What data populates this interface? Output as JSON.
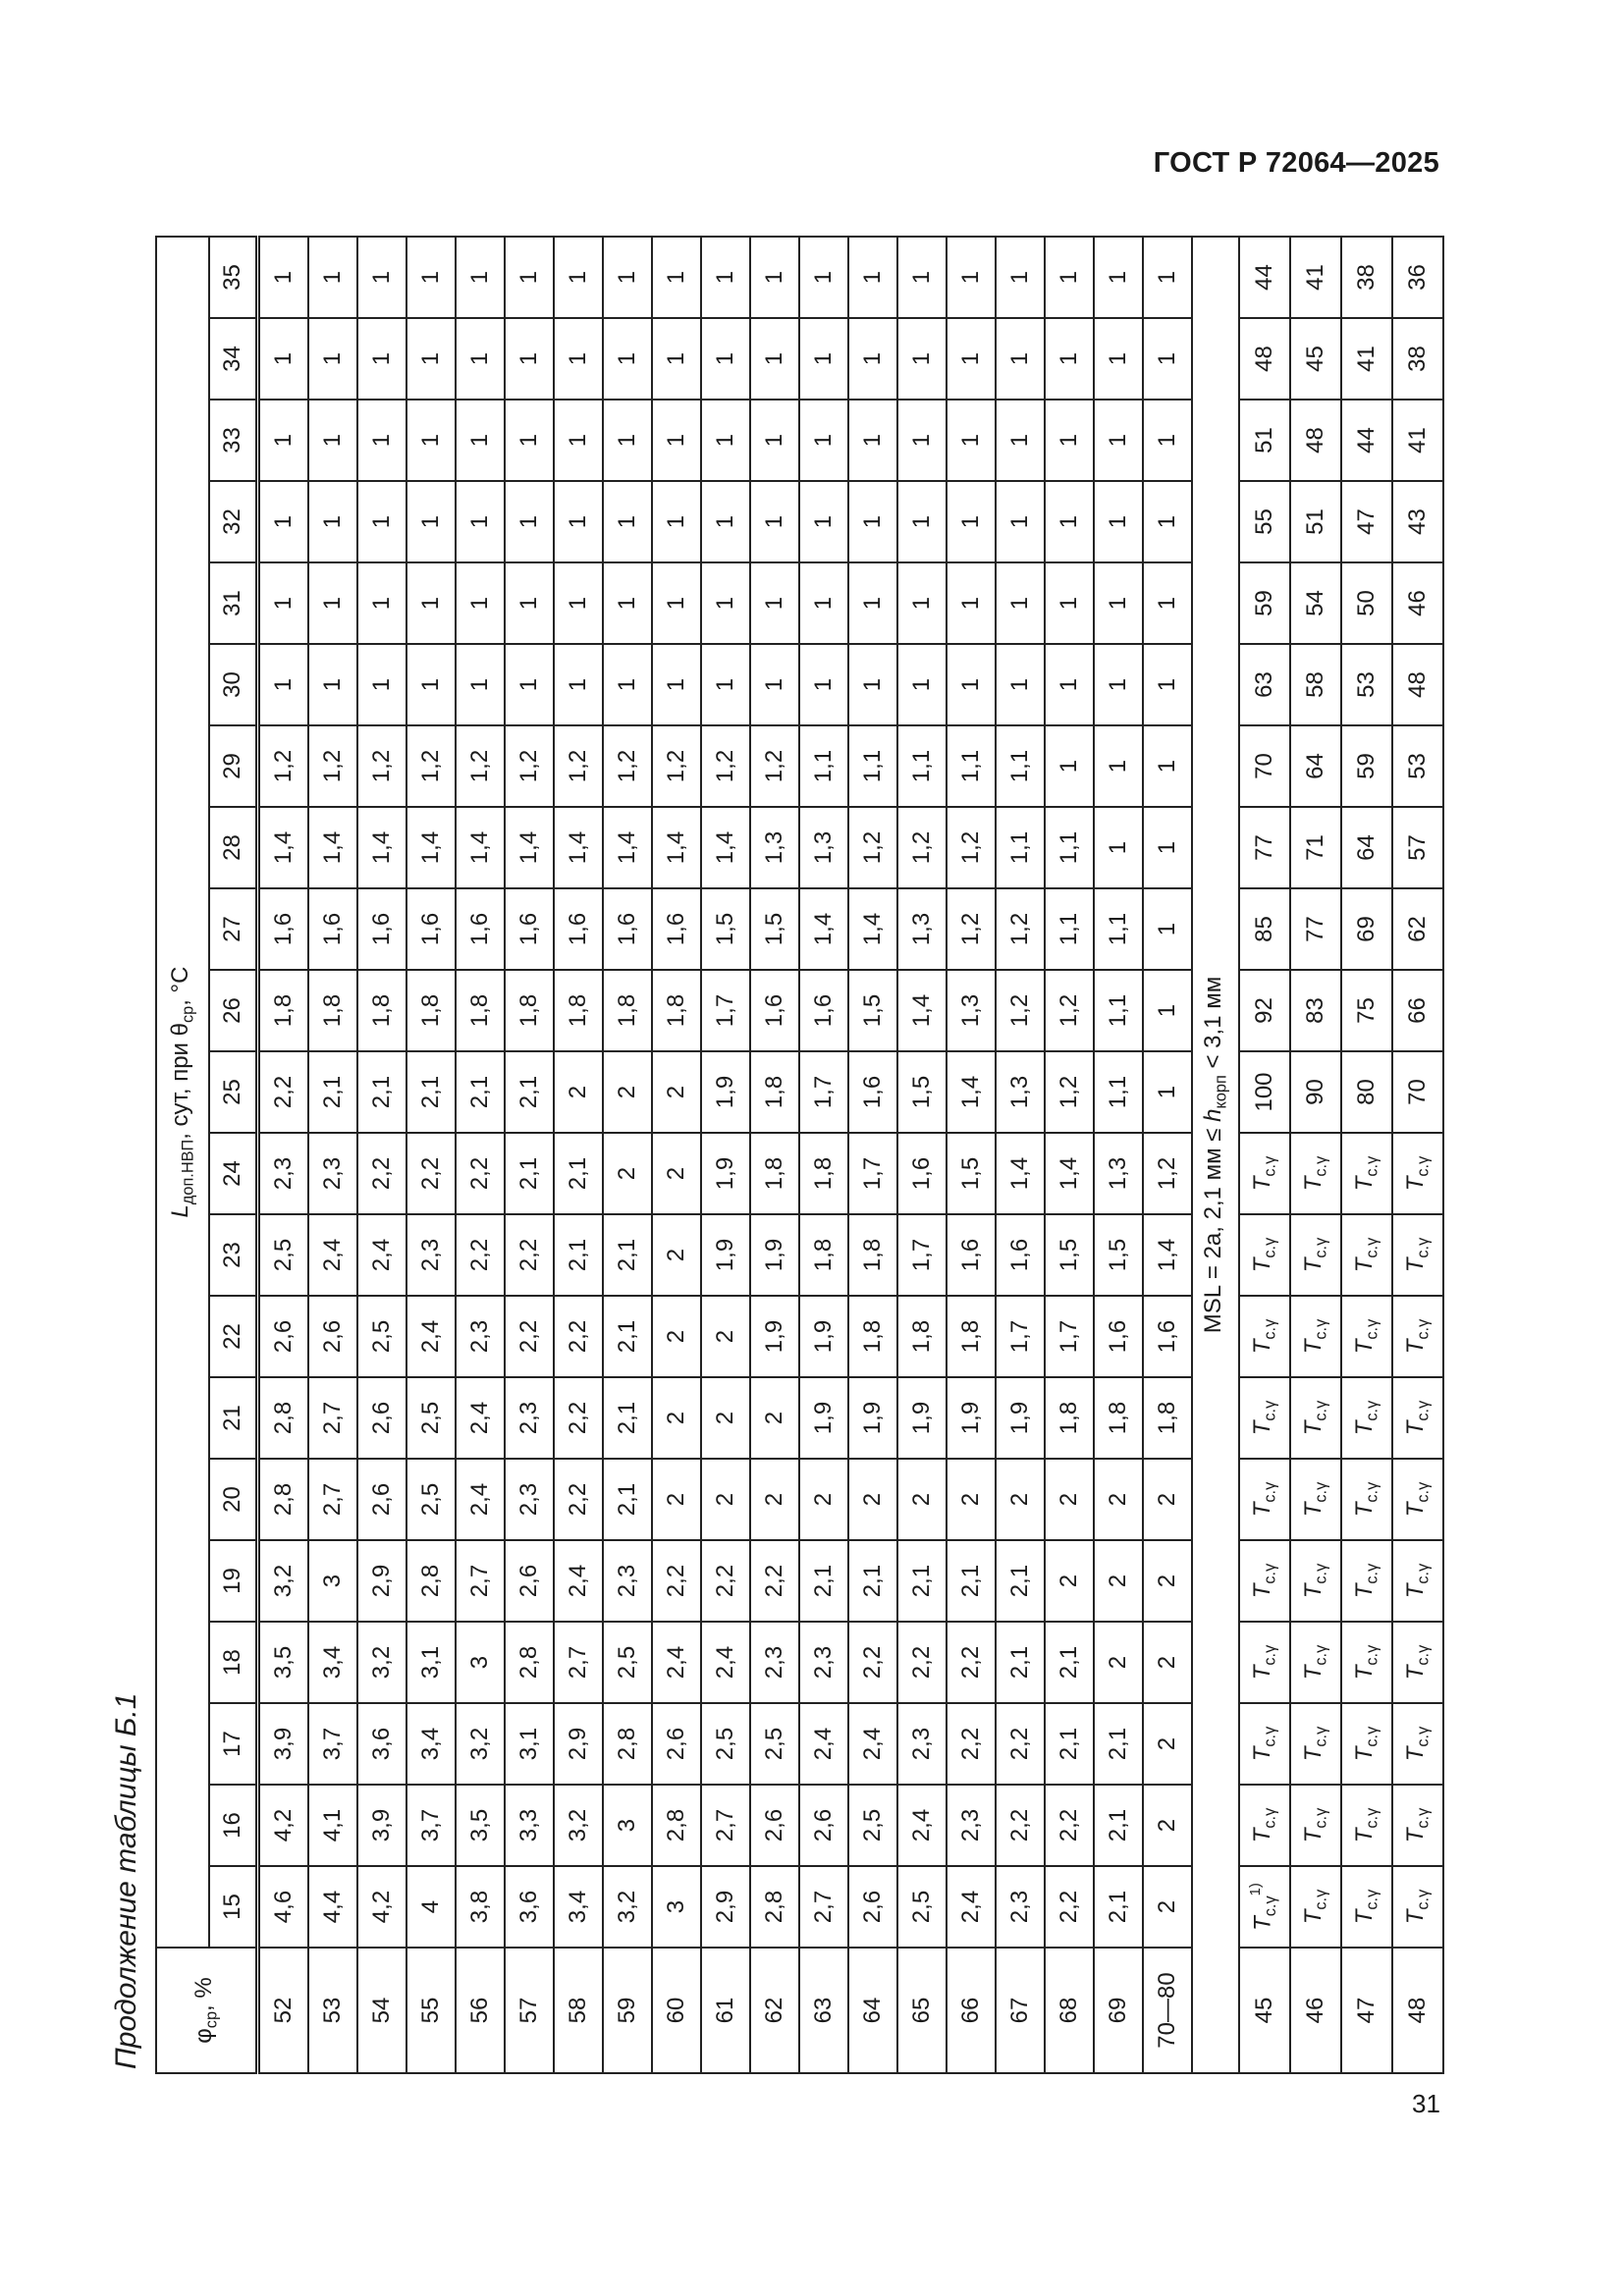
{
  "document": {
    "header": "ГОСТ Р 72064—2025",
    "page_number": "31",
    "caption": "Продолжение таблицы Б.1"
  },
  "table": {
    "row_header": {
      "symbol": "φ",
      "sub": "ср",
      "rest": ", %"
    },
    "column_group_header": {
      "symbol": "L",
      "sub": "доп.НВП",
      "mid": ", сут, при θ",
      "sub2": "ср",
      "rest": ", °C"
    },
    "columns": [
      "15",
      "16",
      "17",
      "18",
      "19",
      "20",
      "21",
      "22",
      "23",
      "24",
      "25",
      "26",
      "27",
      "28",
      "29",
      "30",
      "31",
      "32",
      "33",
      "34",
      "35"
    ],
    "rows": [
      {
        "label": "52",
        "values": [
          "4,6",
          "4,2",
          "3,9",
          "3,5",
          "3,2",
          "2,8",
          "2,8",
          "2,6",
          "2,5",
          "2,3",
          "2,2",
          "1,8",
          "1,6",
          "1,4",
          "1,2",
          "1",
          "1",
          "1",
          "1",
          "1",
          "1"
        ]
      },
      {
        "label": "53",
        "values": [
          "4,4",
          "4,1",
          "3,7",
          "3,4",
          "3",
          "2,7",
          "2,7",
          "2,6",
          "2,4",
          "2,3",
          "2,1",
          "1,8",
          "1,6",
          "1,4",
          "1,2",
          "1",
          "1",
          "1",
          "1",
          "1",
          "1"
        ]
      },
      {
        "label": "54",
        "values": [
          "4,2",
          "3,9",
          "3,6",
          "3,2",
          "2,9",
          "2,6",
          "2,6",
          "2,5",
          "2,4",
          "2,2",
          "2,1",
          "1,8",
          "1,6",
          "1,4",
          "1,2",
          "1",
          "1",
          "1",
          "1",
          "1",
          "1"
        ]
      },
      {
        "label": "55",
        "values": [
          "4",
          "3,7",
          "3,4",
          "3,1",
          "2,8",
          "2,5",
          "2,5",
          "2,4",
          "2,3",
          "2,2",
          "2,1",
          "1,8",
          "1,6",
          "1,4",
          "1,2",
          "1",
          "1",
          "1",
          "1",
          "1",
          "1"
        ]
      },
      {
        "label": "56",
        "values": [
          "3,8",
          "3,5",
          "3,2",
          "3",
          "2,7",
          "2,4",
          "2,4",
          "2,3",
          "2,2",
          "2,2",
          "2,1",
          "1,8",
          "1,6",
          "1,4",
          "1,2",
          "1",
          "1",
          "1",
          "1",
          "1",
          "1"
        ]
      },
      {
        "label": "57",
        "values": [
          "3,6",
          "3,3",
          "3,1",
          "2,8",
          "2,6",
          "2,3",
          "2,3",
          "2,2",
          "2,2",
          "2,1",
          "2,1",
          "1,8",
          "1,6",
          "1,4",
          "1,2",
          "1",
          "1",
          "1",
          "1",
          "1",
          "1"
        ]
      },
      {
        "label": "58",
        "values": [
          "3,4",
          "3,2",
          "2,9",
          "2,7",
          "2,4",
          "2,2",
          "2,2",
          "2,2",
          "2,1",
          "2,1",
          "2",
          "1,8",
          "1,6",
          "1,4",
          "1,2",
          "1",
          "1",
          "1",
          "1",
          "1",
          "1"
        ]
      },
      {
        "label": "59",
        "values": [
          "3,2",
          "3",
          "2,8",
          "2,5",
          "2,3",
          "2,1",
          "2,1",
          "2,1",
          "2,1",
          "2",
          "2",
          "1,8",
          "1,6",
          "1,4",
          "1,2",
          "1",
          "1",
          "1",
          "1",
          "1",
          "1"
        ]
      },
      {
        "label": "60",
        "values": [
          "3",
          "2,8",
          "2,6",
          "2,4",
          "2,2",
          "2",
          "2",
          "2",
          "2",
          "2",
          "2",
          "1,8",
          "1,6",
          "1,4",
          "1,2",
          "1",
          "1",
          "1",
          "1",
          "1",
          "1"
        ]
      },
      {
        "label": "61",
        "values": [
          "2,9",
          "2,7",
          "2,5",
          "2,4",
          "2,2",
          "2",
          "2",
          "2",
          "1,9",
          "1,9",
          "1,9",
          "1,7",
          "1,5",
          "1,4",
          "1,2",
          "1",
          "1",
          "1",
          "1",
          "1",
          "1"
        ]
      },
      {
        "label": "62",
        "values": [
          "2,8",
          "2,6",
          "2,5",
          "2,3",
          "2,2",
          "2",
          "2",
          "1,9",
          "1,9",
          "1,8",
          "1,8",
          "1,6",
          "1,5",
          "1,3",
          "1,2",
          "1",
          "1",
          "1",
          "1",
          "1",
          "1"
        ]
      },
      {
        "label": "63",
        "values": [
          "2,7",
          "2,6",
          "2,4",
          "2,3",
          "2,1",
          "2",
          "1,9",
          "1,9",
          "1,8",
          "1,8",
          "1,7",
          "1,6",
          "1,4",
          "1,3",
          "1,1",
          "1",
          "1",
          "1",
          "1",
          "1",
          "1"
        ]
      },
      {
        "label": "64",
        "values": [
          "2,6",
          "2,5",
          "2,4",
          "2,2",
          "2,1",
          "2",
          "1,9",
          "1,8",
          "1,8",
          "1,7",
          "1,6",
          "1,5",
          "1,4",
          "1,2",
          "1,1",
          "1",
          "1",
          "1",
          "1",
          "1",
          "1"
        ]
      },
      {
        "label": "65",
        "values": [
          "2,5",
          "2,4",
          "2,3",
          "2,2",
          "2,1",
          "2",
          "1,9",
          "1,8",
          "1,7",
          "1,6",
          "1,5",
          "1,4",
          "1,3",
          "1,2",
          "1,1",
          "1",
          "1",
          "1",
          "1",
          "1",
          "1"
        ]
      },
      {
        "label": "66",
        "values": [
          "2,4",
          "2,3",
          "2,2",
          "2,2",
          "2,1",
          "2",
          "1,9",
          "1,8",
          "1,6",
          "1,5",
          "1,4",
          "1,3",
          "1,2",
          "1,2",
          "1,1",
          "1",
          "1",
          "1",
          "1",
          "1",
          "1"
        ]
      },
      {
        "label": "67",
        "values": [
          "2,3",
          "2,2",
          "2,2",
          "2,1",
          "2,1",
          "2",
          "1,9",
          "1,7",
          "1,6",
          "1,4",
          "1,3",
          "1,2",
          "1,2",
          "1,1",
          "1,1",
          "1",
          "1",
          "1",
          "1",
          "1",
          "1"
        ]
      },
      {
        "label": "68",
        "values": [
          "2,2",
          "2,2",
          "2,1",
          "2,1",
          "2",
          "2",
          "1,8",
          "1,7",
          "1,5",
          "1,4",
          "1,2",
          "1,2",
          "1,1",
          "1,1",
          "1",
          "1",
          "1",
          "1",
          "1",
          "1",
          "1"
        ]
      },
      {
        "label": "69",
        "values": [
          "2,1",
          "2,1",
          "2,1",
          "2",
          "2",
          "2",
          "1,8",
          "1,6",
          "1,5",
          "1,3",
          "1,1",
          "1,1",
          "1,1",
          "1",
          "1",
          "1",
          "1",
          "1",
          "1",
          "1",
          "1"
        ]
      },
      {
        "label": "70—80",
        "values": [
          "2",
          "2",
          "2",
          "2",
          "2",
          "2",
          "1,8",
          "1,6",
          "1,4",
          "1,2",
          "1",
          "1",
          "1",
          "1",
          "1",
          "1",
          "1",
          "1",
          "1",
          "1",
          "1"
        ]
      }
    ],
    "section": {
      "prefix": "MSL = 2a, 2,1 мм ≤ ",
      "symbol": "h",
      "sub": "корп",
      "suffix": " < 3,1 мм"
    },
    "symbol_cell": {
      "main": "T",
      "sub": "с.γ",
      "footnote": "1)"
    },
    "section_rows": [
      {
        "label": "45",
        "values": [
          "Tс.γ 1)",
          "Tс.γ",
          "Tс.γ",
          "Tс.γ",
          "Tс.γ",
          "Tс.γ",
          "Tс.γ",
          "Tс.γ",
          "Tс.γ",
          "Tс.γ",
          "100",
          "92",
          "85",
          "77",
          "70",
          "63",
          "59",
          "55",
          "51",
          "48",
          "44"
        ]
      },
      {
        "label": "46",
        "values": [
          "Tс.γ",
          "Tс.γ",
          "Tс.γ",
          "Tс.γ",
          "Tс.γ",
          "Tс.γ",
          "Tс.γ",
          "Tс.γ",
          "Tс.γ",
          "Tс.γ",
          "90",
          "83",
          "77",
          "71",
          "64",
          "58",
          "54",
          "51",
          "48",
          "45",
          "41"
        ]
      },
      {
        "label": "47",
        "values": [
          "Tс.γ",
          "Tс.γ",
          "Tс.γ",
          "Tс.γ",
          "Tс.γ",
          "Tс.γ",
          "Tс.γ",
          "Tс.γ",
          "Tс.γ",
          "Tс.γ",
          "80",
          "75",
          "69",
          "64",
          "59",
          "53",
          "50",
          "47",
          "44",
          "41",
          "38"
        ]
      },
      {
        "label": "48",
        "values": [
          "Tс.γ",
          "Tс.γ",
          "Tс.γ",
          "Tс.γ",
          "Tс.γ",
          "Tс.γ",
          "Tс.γ",
          "Tс.γ",
          "Tс.γ",
          "Tс.γ",
          "70",
          "66",
          "62",
          "57",
          "53",
          "48",
          "46",
          "43",
          "41",
          "38",
          "36"
        ]
      }
    ]
  }
}
